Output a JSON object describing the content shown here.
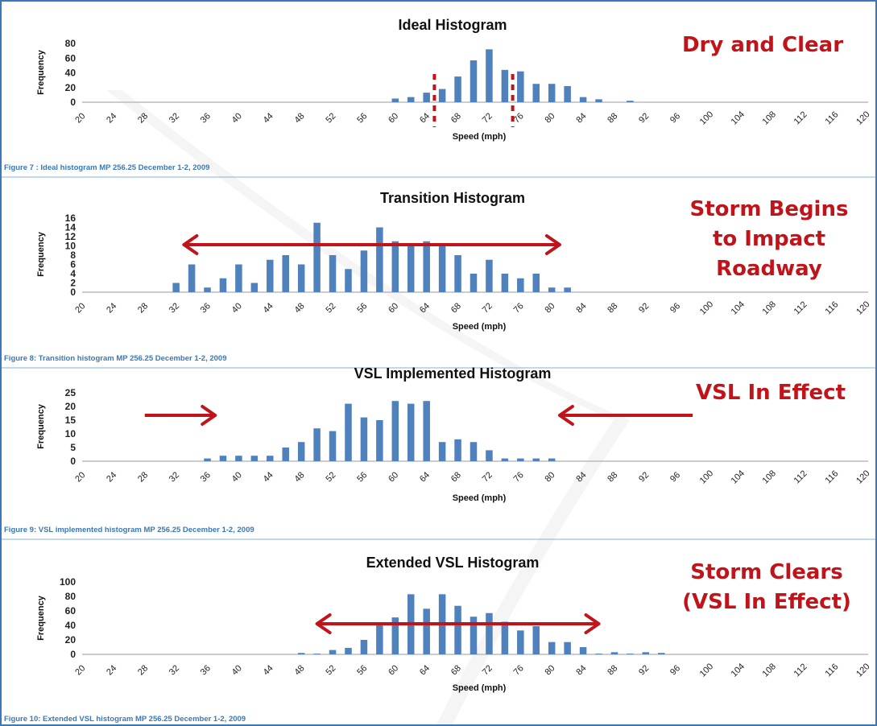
{
  "colors": {
    "bar": "#4f81bd",
    "annotation": "#c0141a",
    "caption": "#3a78b8",
    "axis": "#bbbbbb"
  },
  "chart_data": [
    {
      "type": "bar",
      "title": "Ideal Histogram",
      "xlabel": "Speed (mph)",
      "ylabel": "Frequency",
      "ylim": [
        0,
        80
      ],
      "yticks": [
        0,
        20,
        40,
        60,
        80
      ],
      "x": [
        60,
        62,
        64,
        66,
        68,
        70,
        72,
        74,
        76,
        78,
        80,
        82,
        84,
        86,
        88,
        90
      ],
      "values": [
        5,
        7,
        13,
        18,
        35,
        57,
        72,
        44,
        42,
        25,
        25,
        22,
        7,
        4,
        0,
        2
      ],
      "xticks": [
        20,
        24,
        28,
        32,
        36,
        40,
        44,
        48,
        52,
        56,
        60,
        64,
        68,
        72,
        76,
        80,
        84,
        88,
        92,
        96,
        100,
        104,
        108,
        112,
        116,
        120
      ],
      "caption": "Figure 7 : Ideal histogram MP 256.25 December 1-2, 2009",
      "annotation": [
        "Dry and Clear"
      ],
      "marker": "dotted-vertical-lines",
      "marker_x": [
        65,
        75
      ]
    },
    {
      "type": "bar",
      "title": "Transition Histogram",
      "xlabel": "Speed (mph)",
      "ylabel": "Frequency",
      "ylim": [
        0,
        16
      ],
      "yticks": [
        0,
        2,
        4,
        6,
        8,
        10,
        12,
        14,
        16
      ],
      "x": [
        32,
        34,
        36,
        38,
        40,
        42,
        44,
        46,
        48,
        50,
        52,
        54,
        56,
        58,
        60,
        62,
        64,
        66,
        68,
        70,
        72,
        74,
        76,
        78,
        80,
        82
      ],
      "values": [
        2,
        6,
        1,
        3,
        6,
        2,
        7,
        8,
        6,
        15,
        8,
        5,
        9,
        14,
        11,
        10,
        11,
        10,
        8,
        4,
        7,
        4,
        3,
        4,
        1,
        1
      ],
      "xticks": [
        20,
        24,
        28,
        32,
        36,
        40,
        44,
        48,
        52,
        56,
        60,
        64,
        68,
        72,
        76,
        80,
        84,
        88,
        92,
        96,
        100,
        104,
        108,
        112,
        116,
        120
      ],
      "caption": "Figure 8: Transition histogram MP 256.25 December 1-2, 2009",
      "annotation": [
        "Storm Begins",
        "to Impact",
        "Roadway"
      ],
      "marker": "double-arrow",
      "marker_x": [
        33,
        81
      ]
    },
    {
      "type": "bar",
      "title": "VSL Implemented Histogram",
      "xlabel": "Speed (mph)",
      "ylabel": "Frequency",
      "ylim": [
        0,
        25
      ],
      "yticks": [
        0,
        5,
        10,
        15,
        20,
        25
      ],
      "x": [
        36,
        38,
        40,
        42,
        44,
        46,
        48,
        50,
        52,
        54,
        56,
        58,
        60,
        62,
        64,
        66,
        68,
        70,
        72,
        74,
        76,
        78,
        80
      ],
      "values": [
        1,
        2,
        2,
        2,
        2,
        5,
        7,
        12,
        11,
        21,
        16,
        15,
        22,
        21,
        22,
        7,
        8,
        7,
        4,
        1,
        1,
        1,
        1
      ],
      "xticks": [
        20,
        24,
        28,
        32,
        36,
        40,
        44,
        48,
        52,
        56,
        60,
        64,
        68,
        72,
        76,
        80,
        84,
        88,
        92,
        96,
        100,
        104,
        108,
        112,
        116,
        120
      ],
      "caption": "Figure 9: VSL implemented histogram MP 256.25 December 1-2, 2009",
      "annotation": [
        "VSL In Effect"
      ],
      "marker": "inward-arrows",
      "marker_x": [
        28,
        37,
        81,
        98
      ]
    },
    {
      "type": "bar",
      "title": "Extended VSL Histogram",
      "xlabel": "Speed (mph)",
      "ylabel": "Frequency",
      "ylim": [
        0,
        100
      ],
      "yticks": [
        0,
        20,
        40,
        60,
        80,
        100
      ],
      "x": [
        48,
        50,
        52,
        54,
        56,
        58,
        60,
        62,
        64,
        66,
        68,
        70,
        72,
        74,
        76,
        78,
        80,
        82,
        84,
        86,
        88,
        90,
        92,
        94
      ],
      "values": [
        2,
        1,
        6,
        9,
        20,
        40,
        51,
        83,
        63,
        83,
        67,
        52,
        57,
        45,
        33,
        39,
        17,
        17,
        10,
        1,
        3,
        1,
        3,
        2
      ],
      "xticks": [
        20,
        24,
        28,
        32,
        36,
        40,
        44,
        48,
        52,
        56,
        60,
        64,
        68,
        72,
        76,
        80,
        84,
        88,
        92,
        96,
        100,
        104,
        108,
        112,
        116,
        120
      ],
      "caption": "Figure 10: Extended VSL histogram MP 256.25 December 1-2, 2009",
      "annotation": [
        "Storm Clears",
        "(VSL In Effect)"
      ],
      "marker": "double-arrow",
      "marker_x": [
        50,
        86
      ]
    }
  ]
}
